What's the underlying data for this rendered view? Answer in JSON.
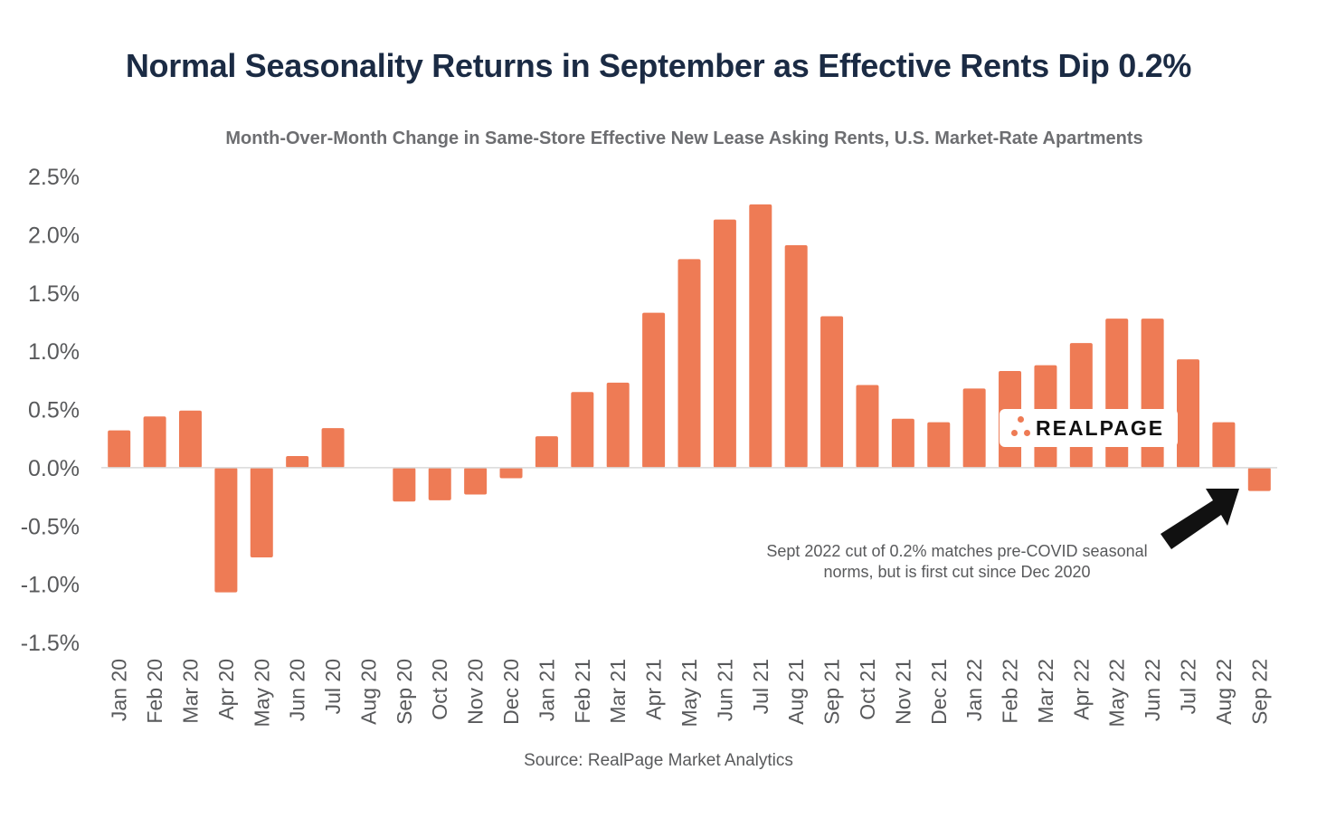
{
  "chart_data": {
    "type": "bar",
    "title": "Normal Seasonality Returns in September as Effective Rents Dip 0.2%",
    "subtitle": "Month-Over-Month Change in Same-Store Effective New Lease Asking Rents, U.S. Market-Rate Apartments",
    "source": "Source: RealPage Market Analytics",
    "categories": [
      "Jan 20",
      "Feb 20",
      "Mar 20",
      "Apr 20",
      "May 20",
      "Jun 20",
      "Jul 20",
      "Aug 20",
      "Sep 20",
      "Oct 20",
      "Nov 20",
      "Dec 20",
      "Jan 21",
      "Feb 21",
      "Mar 21",
      "Apr 21",
      "May 21",
      "Jun 21",
      "Jul 21",
      "Aug 21",
      "Sep 21",
      "Oct 21",
      "Nov 21",
      "Dec 21",
      "Jan 22",
      "Feb 22",
      "Mar 22",
      "Apr 22",
      "May 22",
      "Jun 22",
      "Jul 22",
      "Aug 22",
      "Sep 22"
    ],
    "values": [
      0.32,
      0.44,
      0.49,
      -1.07,
      -0.77,
      0.1,
      0.34,
      0.0,
      -0.29,
      -0.28,
      -0.23,
      -0.09,
      0.27,
      0.65,
      0.73,
      1.33,
      1.79,
      2.13,
      2.26,
      1.91,
      1.3,
      0.71,
      0.42,
      0.39,
      0.68,
      0.83,
      0.88,
      1.07,
      1.28,
      1.28,
      0.93,
      0.39,
      -0.2
    ],
    "y_tick_labels": [
      "2.5%",
      "2.0%",
      "1.5%",
      "1.0%",
      "0.5%",
      "0.0%",
      "-0.5%",
      "-1.0%",
      "-1.5%"
    ],
    "y_tick_values": [
      2.5,
      2.0,
      1.5,
      1.0,
      0.5,
      0.0,
      -0.5,
      -1.0,
      -1.5
    ],
    "ylim": [
      -1.5,
      2.5
    ],
    "xlabel": "",
    "ylabel": "",
    "grid": false,
    "bar_color": "#ee7b55",
    "zero_line_color": "#d9d9d9",
    "annotation": {
      "line1": "Sept 2022 cut of 0.2% matches pre-COVID seasonal",
      "line2": "norms, but is first cut since Dec 2020",
      "target_category": "Sep 22"
    },
    "logo_text": "REALPAGE"
  }
}
